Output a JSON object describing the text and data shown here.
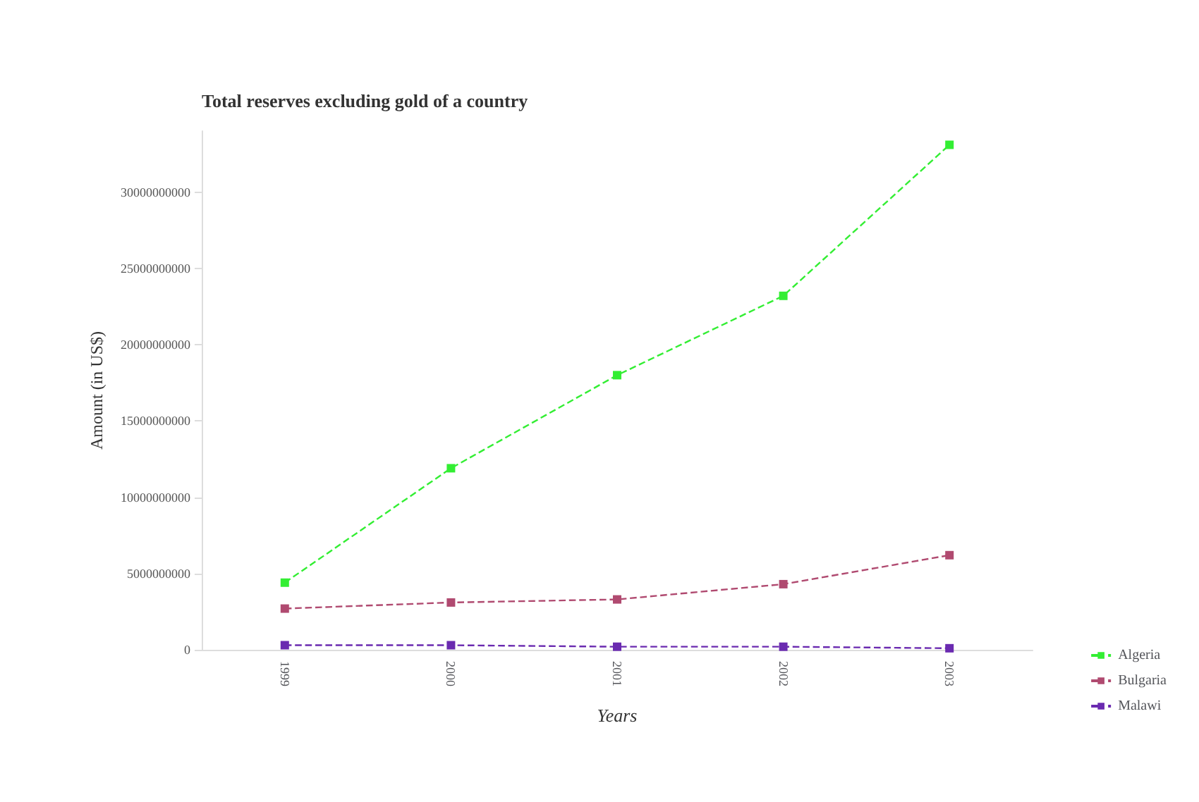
{
  "chart_data": {
    "type": "line",
    "title": "Total reserves excluding gold of a country",
    "xlabel": "Years",
    "ylabel": "Amount (in US$)",
    "categories": [
      "1999",
      "2000",
      "2001",
      "2002",
      "2003"
    ],
    "ylim": [
      0,
      34000000000
    ],
    "yticks": [
      0,
      5000000000,
      10000000000,
      15000000000,
      20000000000,
      25000000000,
      30000000000
    ],
    "grid": false,
    "legend": "bottom right",
    "marker": "square",
    "line_style": "dashed",
    "series": [
      {
        "name": "Algeria",
        "color": "#33ee33",
        "values": [
          4400000000,
          11900000000,
          18000000000,
          23200000000,
          33100000000
        ]
      },
      {
        "name": "Bulgaria",
        "color": "#b04a70",
        "values": [
          2700000000,
          3100000000,
          3300000000,
          4300000000,
          6200000000
        ]
      },
      {
        "name": "Malawi",
        "color": "#6a2ab0",
        "values": [
          300000000,
          300000000,
          200000000,
          200000000,
          100000000
        ]
      }
    ]
  }
}
